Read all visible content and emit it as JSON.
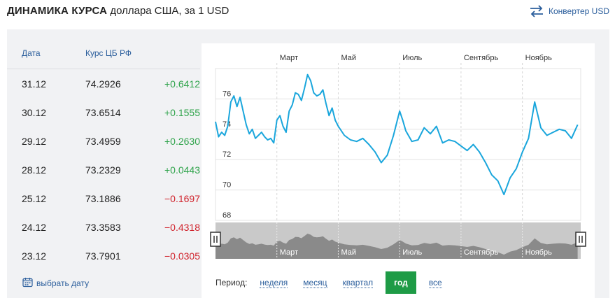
{
  "header": {
    "title_bold": "ДИНАМИКА КУРСА",
    "title_rest": "доллара США, за 1 USD",
    "converter_label": "Конвертер USD"
  },
  "table": {
    "col_date": "Дата",
    "col_rate": "Курс ЦБ РФ",
    "rows": [
      {
        "date": "31.12",
        "rate": "74.2926",
        "change": "+0.6412",
        "dir": "up"
      },
      {
        "date": "30.12",
        "rate": "73.6514",
        "change": "+0.1555",
        "dir": "up"
      },
      {
        "date": "29.12",
        "rate": "73.4959",
        "change": "+0.2630",
        "dir": "up"
      },
      {
        "date": "28.12",
        "rate": "73.2329",
        "change": "+0.0443",
        "dir": "up"
      },
      {
        "date": "25.12",
        "rate": "73.1886",
        "change": "−0.1697",
        "dir": "down"
      },
      {
        "date": "24.12",
        "rate": "73.3583",
        "change": "−0.4318",
        "dir": "down"
      },
      {
        "date": "23.12",
        "rate": "73.7901",
        "change": "−0.0305",
        "dir": "down"
      }
    ],
    "pick_date_label": "выбрать дату"
  },
  "period": {
    "label": "Период:",
    "options": [
      "неделя",
      "месяц",
      "квартал",
      "год",
      "все"
    ],
    "active": "год"
  },
  "colors": {
    "line": "#1aa6dc",
    "positive": "#2ea34a",
    "negative": "#d0222b",
    "accent": "#1e9b46",
    "link": "#2b5e9c"
  },
  "chart_data": {
    "type": "line",
    "month_labels": [
      "Март",
      "Май",
      "Июль",
      "Сентябрь",
      "Ноябрь"
    ],
    "month_positions": [
      2,
      4,
      6,
      8,
      10
    ],
    "y_ticks": [
      68,
      70,
      72,
      74,
      76
    ],
    "ylim": [
      68,
      78
    ],
    "xlim": [
      0,
      11.9
    ],
    "grid": true,
    "series": [
      {
        "x": [
          0,
          0.1,
          0.2,
          0.3,
          0.4,
          0.5,
          0.6,
          0.7,
          0.8,
          0.9,
          1.0,
          1.1,
          1.2,
          1.3,
          1.4,
          1.5,
          1.6,
          1.7,
          1.8,
          1.9,
          2.0,
          2.1,
          2.2,
          2.3,
          2.4,
          2.5,
          2.6,
          2.7,
          2.8,
          2.9,
          3.0,
          3.1,
          3.2,
          3.3,
          3.4,
          3.5,
          3.6,
          3.7,
          3.8,
          3.9,
          4.0,
          4.2,
          4.4,
          4.6,
          4.8,
          5.0,
          5.2,
          5.4,
          5.6,
          5.8,
          6.0,
          6.1,
          6.2,
          6.4,
          6.6,
          6.8,
          7.0,
          7.2,
          7.4,
          7.6,
          7.8,
          8.0,
          8.2,
          8.4,
          8.6,
          8.8,
          9.0,
          9.2,
          9.4,
          9.6,
          9.8,
          10.0,
          10.2,
          10.4,
          10.6,
          10.8,
          11.0,
          11.2,
          11.4,
          11.6,
          11.8
        ],
        "y": [
          74.5,
          73.5,
          73.8,
          73.6,
          74.2,
          75.8,
          76.2,
          75.5,
          76.1,
          75.2,
          74.3,
          73.7,
          74.0,
          73.4,
          73.6,
          73.8,
          73.5,
          73.3,
          73.4,
          73.1,
          74.6,
          74.9,
          74.2,
          73.8,
          75.2,
          75.6,
          76.4,
          76.3,
          75.9,
          76.7,
          77.6,
          77.2,
          76.4,
          76.2,
          76.3,
          76.6,
          75.7,
          74.9,
          75.4,
          74.6,
          74.2,
          73.6,
          73.3,
          73.2,
          73.4,
          73.0,
          72.5,
          71.8,
          72.3,
          73.6,
          75.2,
          74.6,
          73.9,
          73.2,
          73.3,
          74.1,
          73.7,
          74.2,
          73.1,
          73.3,
          73.2,
          72.9,
          72.6,
          73.0,
          72.5,
          71.8,
          71.0,
          70.6,
          69.7,
          70.8,
          71.4,
          72.5,
          73.4,
          75.8,
          74.1,
          73.6,
          73.8,
          74.0,
          73.9,
          73.4,
          74.3
        ]
      }
    ]
  }
}
